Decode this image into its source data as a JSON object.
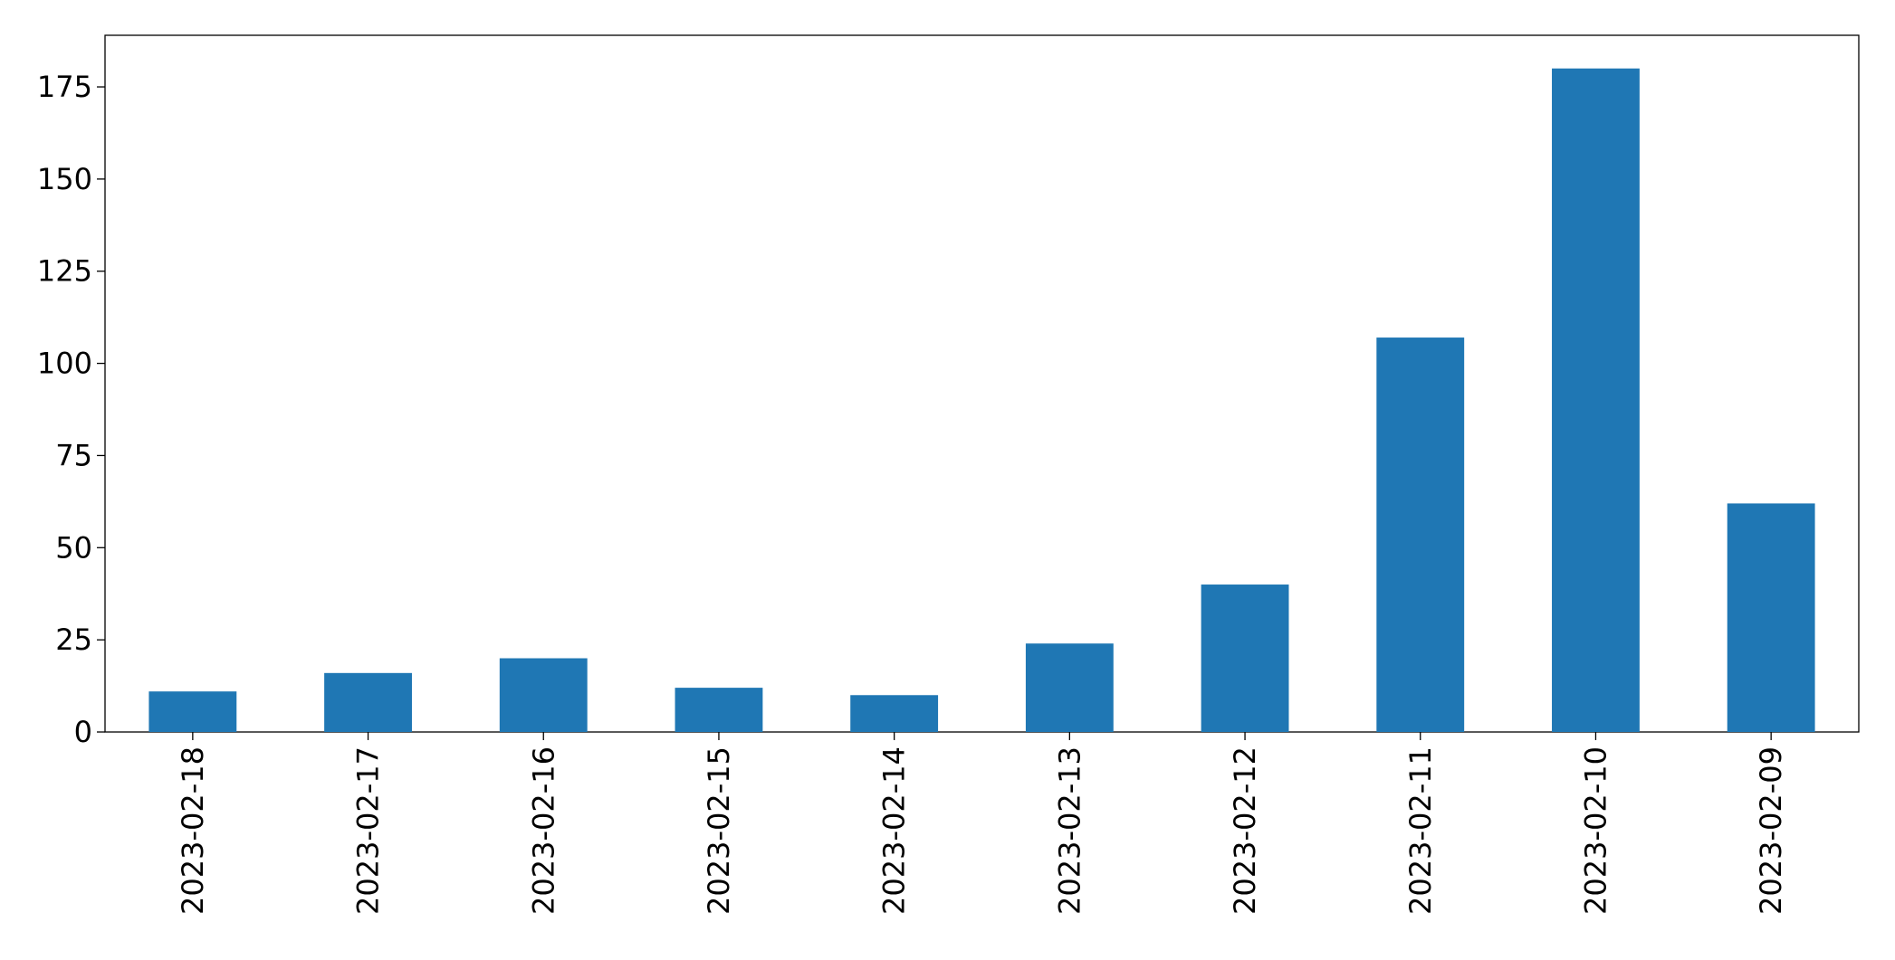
{
  "chart_data": {
    "type": "bar",
    "categories": [
      "2023-02-18",
      "2023-02-17",
      "2023-02-16",
      "2023-02-15",
      "2023-02-14",
      "2023-02-13",
      "2023-02-12",
      "2023-02-11",
      "2023-02-10",
      "2023-02-09"
    ],
    "values": [
      11,
      16,
      20,
      12,
      10,
      24,
      40,
      107,
      180,
      62
    ],
    "color": "#1f77b4",
    "ylim": [
      0,
      189
    ],
    "yticks": [
      0,
      25,
      50,
      75,
      100,
      125,
      150,
      175
    ],
    "grid": false
  }
}
